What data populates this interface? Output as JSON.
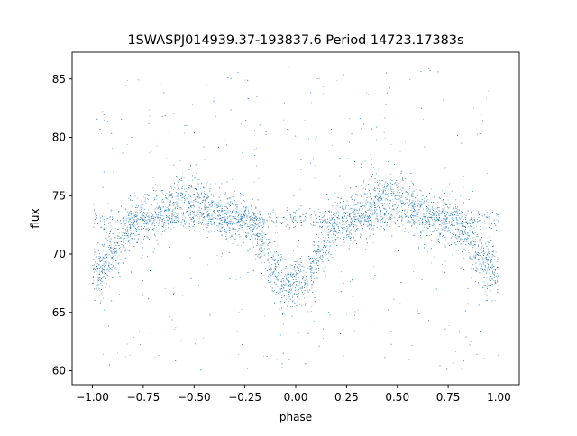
{
  "chart_data": {
    "type": "scatter",
    "title": "1SWASPJ014939.37-193837.6 Period 14723.17383s",
    "xlabel": "phase",
    "ylabel": "flux",
    "xlim": [
      -1.1,
      1.1
    ],
    "ylim": [
      58.8,
      87.3
    ],
    "xticks": [
      -1.0,
      -0.75,
      -0.5,
      -0.25,
      0.0,
      0.25,
      0.5,
      0.75,
      1.0
    ],
    "xtick_labels": [
      "−1.00",
      "−0.75",
      "−0.50",
      "−0.25",
      "0.00",
      "0.25",
      "0.50",
      "0.75",
      "1.00"
    ],
    "yticks": [
      60,
      65,
      70,
      75,
      80,
      85
    ],
    "ytick_labels": [
      "60",
      "65",
      "70",
      "75",
      "80",
      "85"
    ],
    "grid": false,
    "legend": "none",
    "marker_color": "#1f77b4",
    "series": [
      {
        "phase_range": [
          -1.0,
          1.0
        ],
        "description_points": [
          {
            "x": -1.0,
            "y": 68.5
          },
          {
            "x": -0.75,
            "y": 73.0
          },
          {
            "x": -0.55,
            "y": 74.8
          },
          {
            "x": -0.25,
            "y": 72.8
          },
          {
            "x": -0.03,
            "y": 67.0
          },
          {
            "x": 0.0,
            "y": 67.5
          },
          {
            "x": 0.25,
            "y": 73.0
          },
          {
            "x": 0.45,
            "y": 74.8
          },
          {
            "x": 0.75,
            "y": 72.8
          },
          {
            "x": 1.0,
            "y": 68.5
          }
        ],
        "flat_band_y": 73.0,
        "scatter_range": [
          60.0,
          86.0
        ]
      }
    ]
  }
}
